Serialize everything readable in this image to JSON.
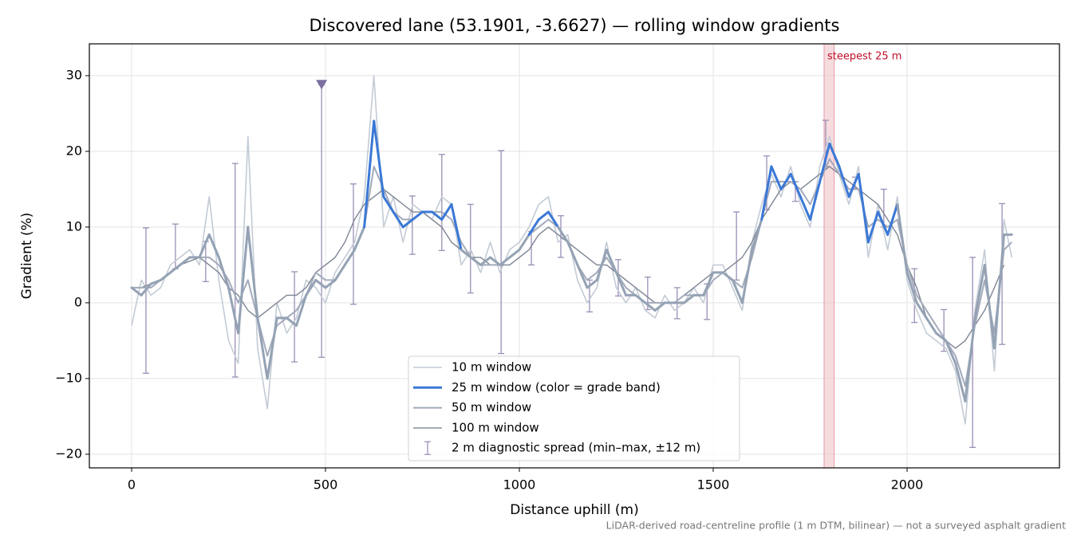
{
  "chart_data": {
    "type": "line",
    "title": "Discovered lane (53.1901, -3.6627) — rolling window gradients",
    "x_label": "Distance uphill (m)",
    "y_label": "Gradient (%)",
    "footnote": "LiDAR-derived road-centreline profile (1 m DTM, bilinear) — not a surveyed asphalt gradient",
    "xlim": [
      -109,
      2393
    ],
    "ylim": [
      -21.8,
      34.2
    ],
    "xticks": [
      0,
      500,
      1000,
      1500,
      2000
    ],
    "yticks": [
      {
        "value": -20,
        "label": "−20"
      },
      {
        "value": -10,
        "label": "−10"
      },
      0,
      10,
      20,
      30
    ],
    "grid": true,
    "legend": "lower center",
    "x": [
      0,
      25,
      50,
      75,
      100,
      125,
      150,
      175,
      200,
      225,
      250,
      275,
      300,
      325,
      350,
      375,
      400,
      425,
      450,
      475,
      500,
      525,
      550,
      575,
      600,
      625,
      650,
      675,
      700,
      725,
      750,
      775,
      800,
      825,
      850,
      875,
      900,
      925,
      950,
      975,
      1000,
      1025,
      1050,
      1075,
      1100,
      1125,
      1150,
      1175,
      1200,
      1225,
      1250,
      1275,
      1300,
      1325,
      1350,
      1375,
      1400,
      1425,
      1450,
      1475,
      1500,
      1525,
      1550,
      1575,
      1600,
      1625,
      1650,
      1675,
      1700,
      1725,
      1750,
      1775,
      1800,
      1825,
      1850,
      1875,
      1900,
      1925,
      1950,
      1975,
      2000,
      2025,
      2050,
      2075,
      2100,
      2125,
      2150,
      2175,
      2200,
      2225,
      2250,
      2270
    ],
    "series": [
      {
        "name": "10 m window",
        "color": "#c3cbd5",
        "values": [
          -3,
          3,
          1,
          2,
          5,
          6,
          7,
          5,
          14,
          3,
          -5,
          -8,
          22,
          -6,
          -14,
          0,
          -4,
          -2,
          3,
          2,
          0,
          4,
          6,
          8,
          14,
          30,
          10,
          14,
          8,
          13,
          12,
          11,
          14,
          13,
          5,
          7,
          4,
          8,
          4,
          7,
          8,
          10,
          13,
          14,
          8,
          9,
          3,
          0,
          2,
          8,
          2,
          0,
          2,
          -1,
          -2,
          1,
          -1,
          0,
          2,
          0,
          5,
          5,
          2,
          -1,
          8,
          13,
          17,
          14,
          18,
          13,
          10,
          18,
          22,
          17,
          13,
          18,
          6,
          13,
          7,
          14,
          3,
          -1,
          -4,
          -5,
          -6,
          -9,
          -16,
          -1,
          7,
          -9,
          11,
          6
        ]
      },
      {
        "name": "25 m window (color = grade band)",
        "color": "#3a78d6",
        "band_edges": [
          10,
          20,
          25
        ],
        "band_colors": [
          "#94a2b4",
          "#3a78d6",
          "#e08a00",
          "#c0102a"
        ],
        "values": [
          2,
          1,
          2.5,
          3,
          4,
          5,
          6,
          6,
          9,
          6,
          2,
          -4,
          10,
          -2,
          -10,
          -2,
          -2,
          -3,
          1,
          3,
          2,
          3,
          5,
          7,
          10,
          24,
          14,
          12,
          10,
          11,
          12,
          12,
          11,
          13,
          7,
          6,
          5,
          6,
          5,
          6,
          7,
          9,
          11,
          12,
          10,
          8,
          5,
          2,
          3,
          7,
          4,
          1,
          1,
          0,
          -1,
          0,
          0,
          0,
          1,
          1,
          4,
          4,
          3,
          0,
          7,
          11,
          18,
          15,
          17,
          14,
          11,
          16,
          21,
          18,
          14,
          17,
          8,
          12,
          9,
          13,
          4,
          0,
          -2,
          -4,
          -5,
          -8,
          -13,
          -2,
          5,
          -6,
          9,
          9
        ]
      },
      {
        "name": "50 m window",
        "color": "#a2aabb",
        "values": [
          2,
          2,
          2,
          3,
          4,
          5,
          6,
          6,
          6,
          5,
          3,
          0,
          3,
          -2,
          -7,
          -3,
          -2,
          -1,
          1,
          4,
          3,
          3,
          5,
          7,
          10,
          18,
          15,
          12,
          11,
          11,
          12,
          12,
          12,
          11,
          8,
          6,
          5,
          5,
          5,
          6,
          7,
          9,
          10,
          11,
          10,
          8,
          5,
          3,
          4,
          6,
          4,
          2,
          1,
          0,
          0,
          0,
          0,
          1,
          1,
          1,
          3,
          4,
          3,
          2,
          6,
          11,
          16,
          16,
          16,
          15,
          13,
          16,
          19,
          17,
          15,
          15,
          10,
          11,
          10,
          11,
          5,
          1,
          -1,
          -3,
          -5,
          -7,
          -11,
          -3,
          3,
          -4,
          7,
          8
        ]
      },
      {
        "name": "100 m window",
        "color": "#7d8594",
        "values": [
          2,
          2,
          2.5,
          3,
          4,
          5,
          5.5,
          6,
          5,
          4,
          2,
          1,
          -1,
          -2,
          -1,
          0,
          1,
          1,
          2,
          4,
          5,
          6,
          8,
          11,
          13,
          14,
          15,
          14,
          13,
          12,
          12,
          11,
          10,
          8,
          7,
          6,
          6,
          5,
          5,
          5,
          6,
          7,
          9,
          10,
          9,
          8,
          7,
          6,
          5,
          5,
          4,
          3,
          2,
          1,
          0,
          0,
          0,
          1,
          2,
          3,
          4,
          4,
          5,
          6,
          8,
          11,
          13,
          15,
          16,
          15,
          16,
          17,
          18,
          17,
          16,
          15,
          14,
          13,
          11,
          9,
          5,
          2,
          -2,
          -4,
          -5,
          -6,
          -5,
          -3,
          -1,
          2,
          5,
          null
        ]
      }
    ],
    "errorbars": {
      "name": "2 m diagnostic spread (min–max, ±12 m)",
      "color": "#9b8fb6",
      "x": [
        37,
        113,
        191,
        267,
        420,
        490,
        572,
        724,
        800,
        874,
        953,
        1031,
        1107,
        1181,
        1255,
        1331,
        1407,
        1484,
        1560,
        1638,
        1712,
        1790,
        1866,
        1940,
        2019,
        2095,
        2169,
        2245
      ],
      "low": [
        -9.3,
        4.5,
        2.8,
        -9.8,
        -7.8,
        -7.2,
        -0.2,
        6.4,
        6.9,
        1.3,
        -6.7,
        5.0,
        6.0,
        -1.2,
        0.9,
        -0.9,
        -2.1,
        -2.2,
        3.0,
        12.3,
        13.4,
        18.0,
        15.1,
        10.0,
        -2.6,
        -6.4,
        -19.1,
        -5.5
      ],
      "high": [
        9.9,
        10.4,
        8.1,
        18.4,
        4.1,
        28.8,
        15.7,
        14.1,
        19.6,
        13.0,
        20.1,
        9.4,
        11.5,
        3.0,
        5.7,
        3.4,
        2.0,
        2.5,
        12.0,
        19.4,
        16.0,
        24.1,
        16.6,
        15.0,
        4.5,
        -0.9,
        6.0,
        13.1
      ]
    },
    "peak_marker": {
      "x": 490,
      "y": 28.8,
      "color": "#7b6fa0"
    },
    "highlight": {
      "label": "steepest 25 m",
      "x": [
        1786,
        1812
      ],
      "color": "#f2c4c9",
      "label_color": "#c0102a"
    }
  }
}
